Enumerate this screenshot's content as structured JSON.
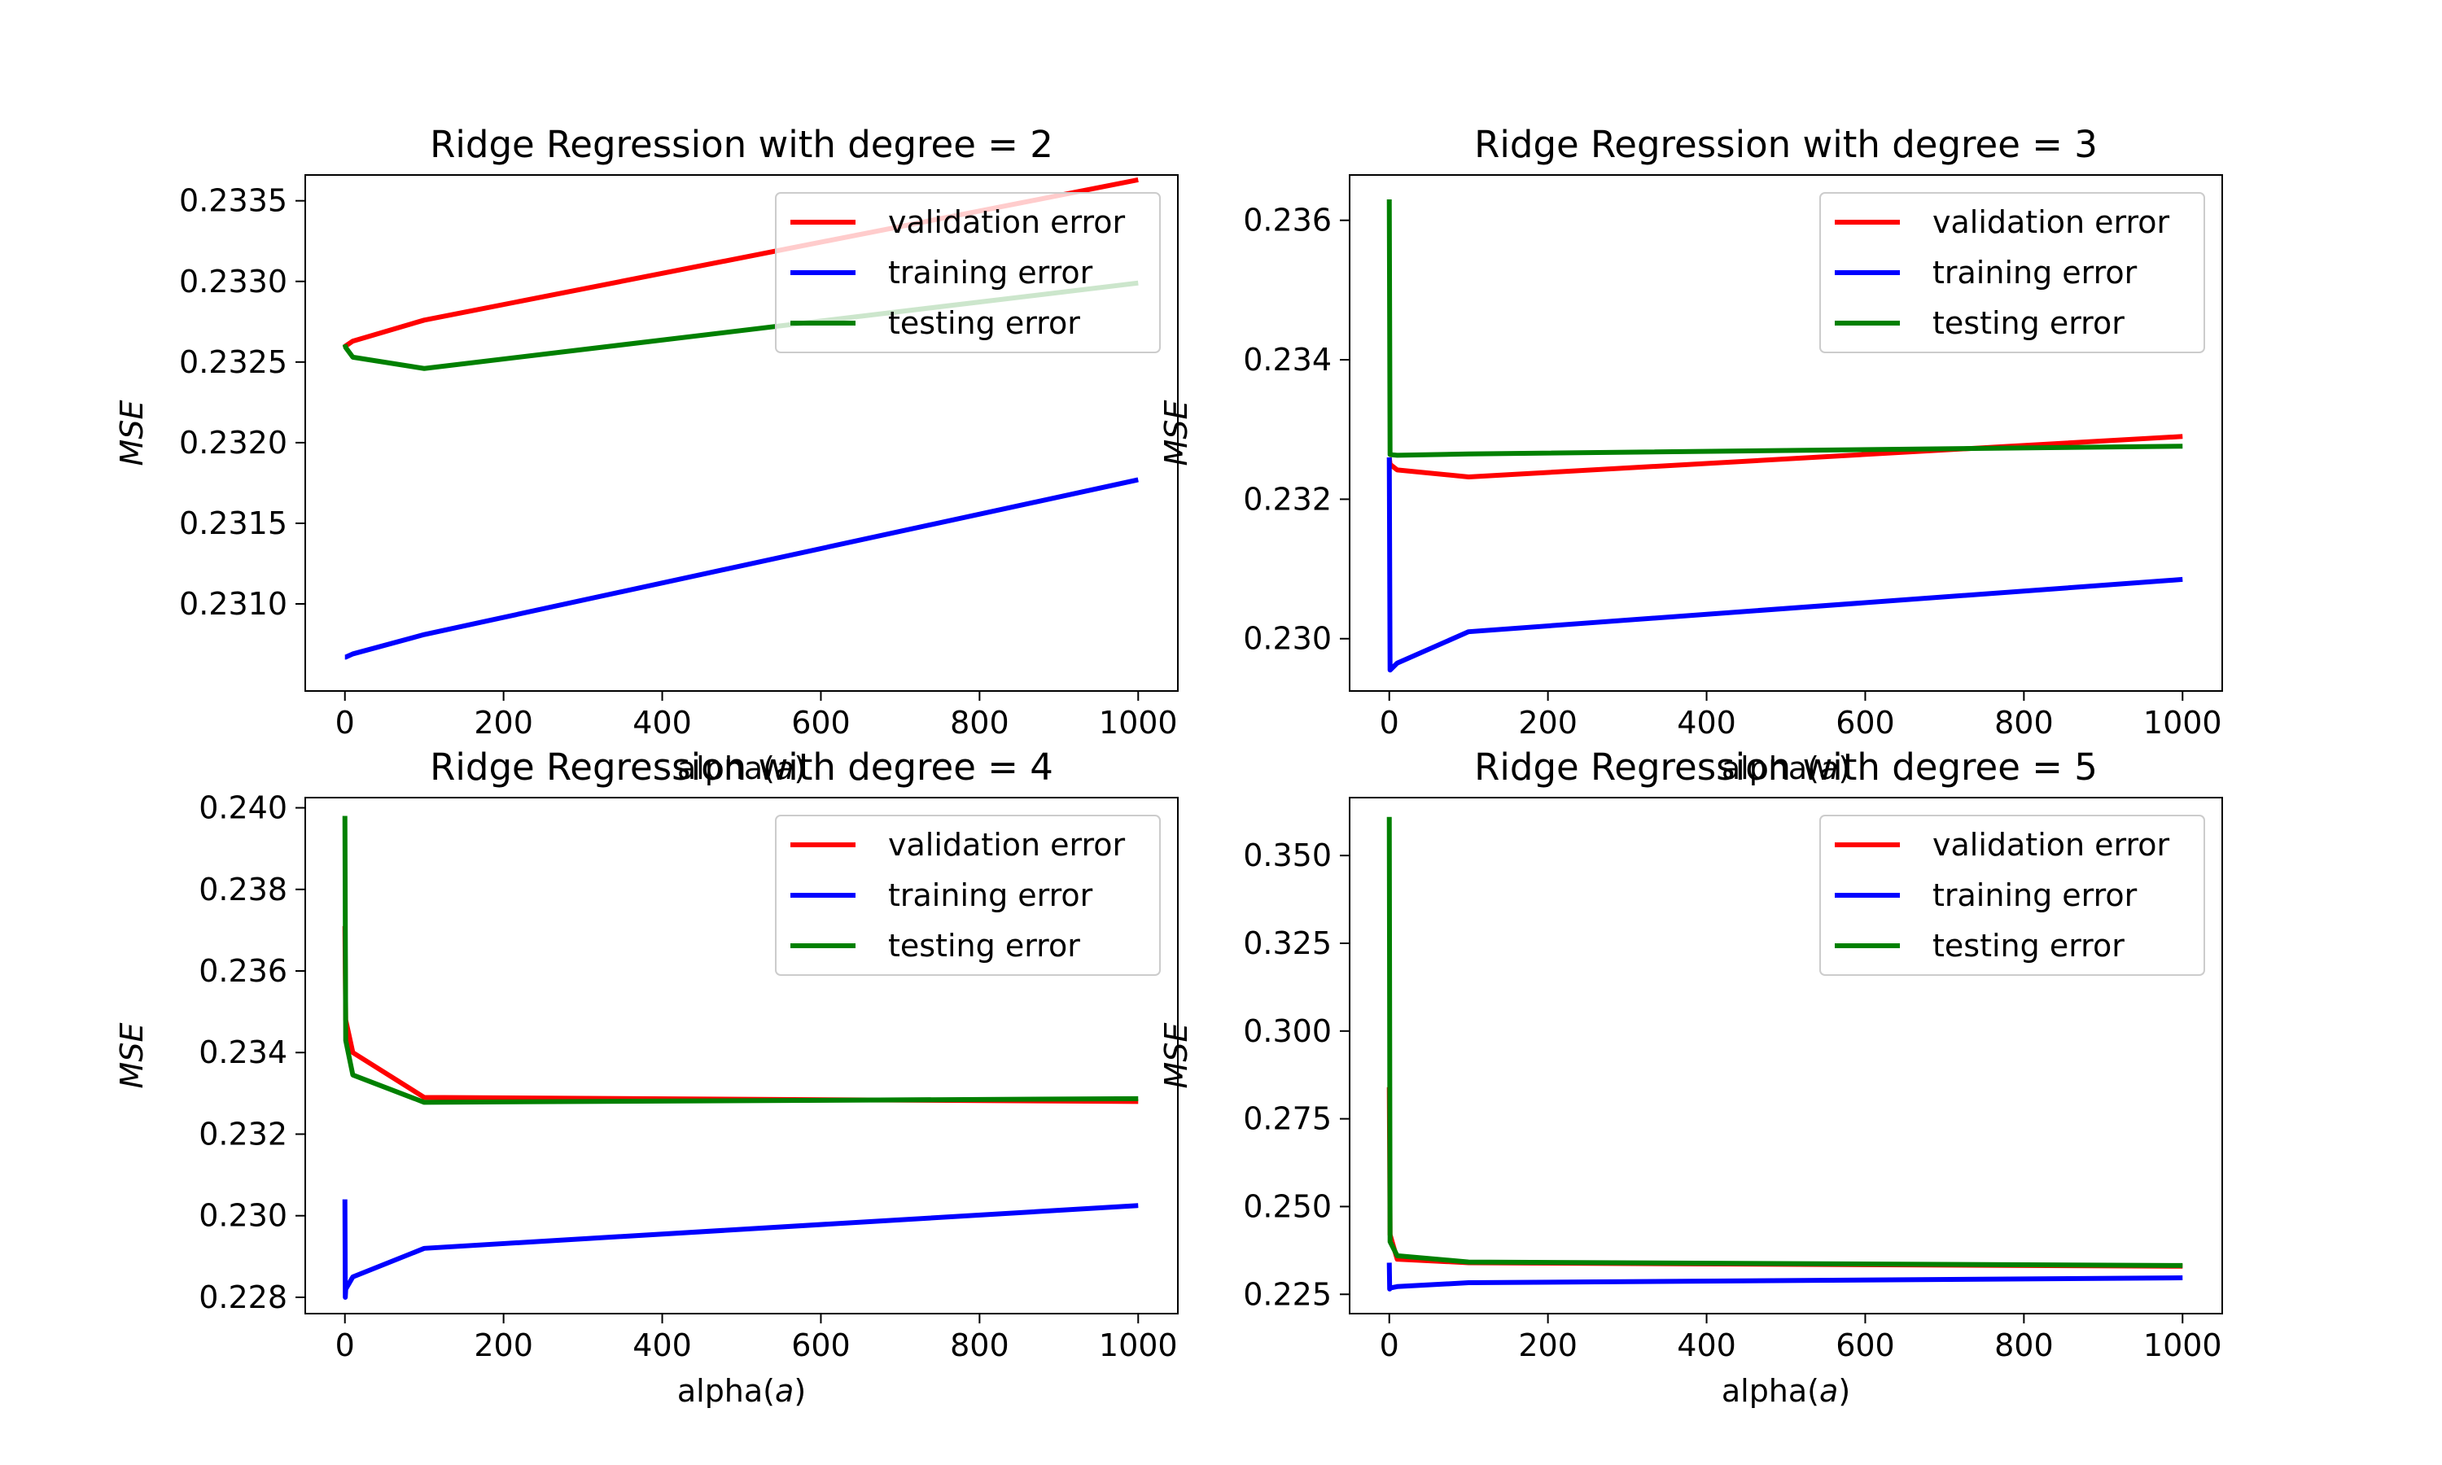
{
  "chart_data": [
    {
      "type": "line",
      "title": "Ridge Regression with degree = 2",
      "xlabel": "alpha(a)",
      "ylabel": "MSE",
      "xlim": [
        -50,
        1050
      ],
      "ylim": [
        0.23046,
        0.23366
      ],
      "xticks": [
        0,
        200,
        400,
        600,
        800,
        1000
      ],
      "yticks": [
        0.231,
        0.2315,
        0.232,
        0.2325,
        0.233,
        0.2335
      ],
      "ytick_decimals": 4,
      "legend_position": "upper right",
      "series": [
        {
          "name": "validation error",
          "color": "#ff0000",
          "x": [
            0,
            1,
            10,
            100,
            1000
          ],
          "y": [
            0.23259,
            0.2326,
            0.23263,
            0.23276,
            0.23363
          ]
        },
        {
          "name": "training error",
          "color": "#0000ff",
          "x": [
            0,
            1,
            10,
            100,
            1000
          ],
          "y": [
            0.23067,
            0.23067,
            0.23069,
            0.23081,
            0.23177
          ]
        },
        {
          "name": "testing error",
          "color": "#008000",
          "x": [
            0,
            1,
            10,
            100,
            1000
          ],
          "y": [
            0.23261,
            0.23259,
            0.23253,
            0.23246,
            0.23299
          ]
        }
      ]
    },
    {
      "type": "line",
      "title": "Ridge Regression with degree = 3",
      "xlabel": "alpha(a)",
      "ylabel": "MSE",
      "xlim": [
        -50,
        1050
      ],
      "ylim": [
        0.22925,
        0.23665
      ],
      "xticks": [
        0,
        200,
        400,
        600,
        800,
        1000
      ],
      "yticks": [
        0.23,
        0.232,
        0.234,
        0.236
      ],
      "ytick_decimals": 3,
      "legend_position": "upper right",
      "series": [
        {
          "name": "validation error",
          "color": "#ff0000",
          "x": [
            0,
            1,
            10,
            100,
            1000
          ],
          "y": [
            0.2326,
            0.2325,
            0.23242,
            0.23232,
            0.2329
          ]
        },
        {
          "name": "training error",
          "color": "#0000ff",
          "x": [
            0,
            1,
            10,
            100,
            1000
          ],
          "y": [
            0.2326,
            0.22955,
            0.22965,
            0.2301,
            0.23085
          ]
        },
        {
          "name": "testing error",
          "color": "#008000",
          "x": [
            0,
            1,
            10,
            100,
            1000
          ],
          "y": [
            0.2363,
            0.23264,
            0.23263,
            0.23265,
            0.23276
          ]
        }
      ]
    },
    {
      "type": "line",
      "title": "Ridge Regression with degree = 4",
      "xlabel": "alpha(a)",
      "ylabel": "MSE",
      "xlim": [
        -50,
        1050
      ],
      "ylim": [
        0.2276,
        0.24025
      ],
      "xticks": [
        0,
        200,
        400,
        600,
        800,
        1000
      ],
      "yticks": [
        0.228,
        0.23,
        0.232,
        0.234,
        0.236,
        0.238,
        0.24
      ],
      "ytick_decimals": 3,
      "legend_position": "upper right",
      "series": [
        {
          "name": "validation error",
          "color": "#ff0000",
          "x": [
            0,
            1,
            10,
            100,
            1000
          ],
          "y": [
            0.2371,
            0.2348,
            0.234,
            0.2329,
            0.2328
          ]
        },
        {
          "name": "training error",
          "color": "#0000ff",
          "x": [
            0,
            0.5,
            1,
            10,
            100,
            1000
          ],
          "y": [
            0.2304,
            0.228,
            0.2282,
            0.2285,
            0.2292,
            0.23025
          ]
        },
        {
          "name": "testing error",
          "color": "#008000",
          "x": [
            0,
            1,
            10,
            100,
            1000
          ],
          "y": [
            0.2398,
            0.2343,
            0.23345,
            0.23278,
            0.23287
          ]
        }
      ]
    },
    {
      "type": "line",
      "title": "Ridge Regression with degree = 5",
      "xlabel": "alpha(a)",
      "ylabel": "MSE",
      "xlim": [
        -50,
        1050
      ],
      "ylim": [
        0.2195,
        0.3665
      ],
      "xticks": [
        0,
        200,
        400,
        600,
        800,
        1000
      ],
      "yticks": [
        0.225,
        0.25,
        0.275,
        0.3,
        0.325,
        0.35
      ],
      "ytick_decimals": 3,
      "legend_position": "upper right",
      "series": [
        {
          "name": "validation error",
          "color": "#ff0000",
          "x": [
            0,
            1,
            10,
            100,
            1000
          ],
          "y": [
            0.284,
            0.242,
            0.235,
            0.234,
            0.233
          ]
        },
        {
          "name": "training error",
          "color": "#0000ff",
          "x": [
            0,
            0.5,
            1,
            10,
            100,
            1000
          ],
          "y": [
            0.234,
            0.2265,
            0.2268,
            0.2272,
            0.2283,
            0.2297
          ]
        },
        {
          "name": "testing error",
          "color": "#008000",
          "x": [
            0,
            1,
            10,
            100,
            1000
          ],
          "y": [
            0.361,
            0.24,
            0.236,
            0.2342,
            0.2332
          ]
        }
      ]
    }
  ]
}
